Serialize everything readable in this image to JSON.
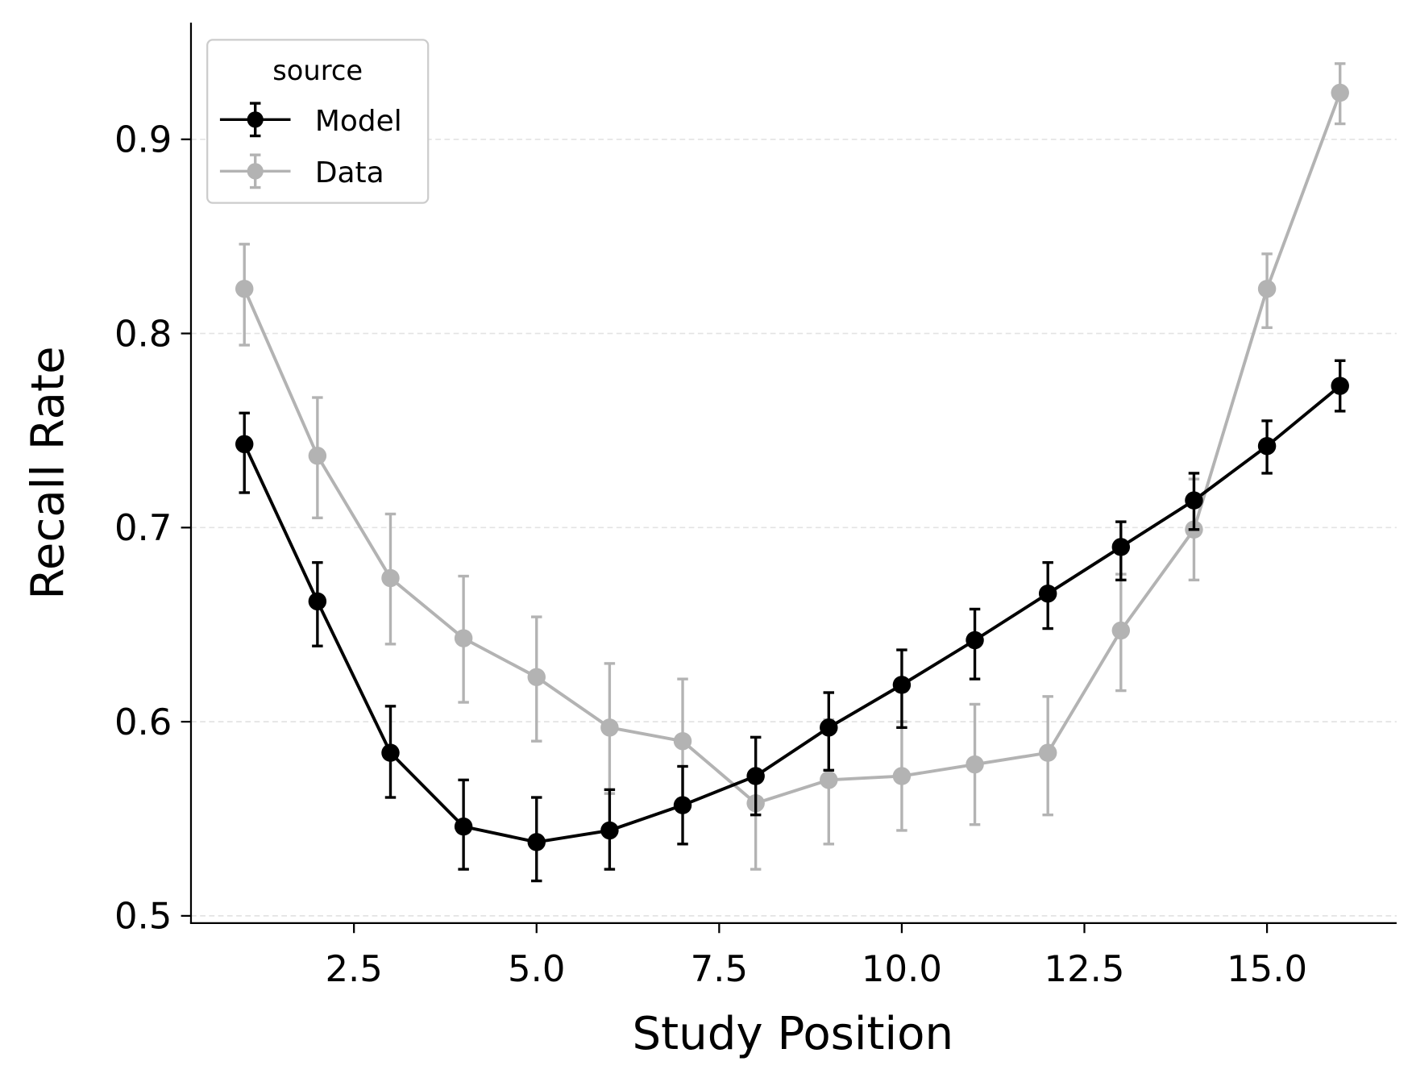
{
  "chart_data": {
    "type": "line",
    "xlabel": "Study Position",
    "ylabel": "Recall Rate",
    "xlim": [
      0.55,
      16.6
    ],
    "ylim": [
      0.497,
      0.96
    ],
    "xticks": [
      2.5,
      5.0,
      7.5,
      10.0,
      12.5,
      15.0
    ],
    "xtick_labels": [
      "2.5",
      "5.0",
      "7.5",
      "10.0",
      "12.5",
      "15.0"
    ],
    "yticks": [
      0.5,
      0.6,
      0.7,
      0.8,
      0.9
    ],
    "ytick_labels": [
      "0.5",
      "0.6",
      "0.7",
      "0.8",
      "0.9"
    ],
    "grid": "horizontal dashed",
    "legend": {
      "title": "source",
      "placement": "top-left"
    },
    "x": [
      1,
      2,
      3,
      4,
      5,
      6,
      7,
      8,
      9,
      10,
      11,
      12,
      13,
      14,
      15,
      16
    ],
    "series": [
      {
        "name": "Model",
        "color": "#000000",
        "values": [
          0.743,
          0.662,
          0.584,
          0.546,
          0.538,
          0.544,
          0.557,
          0.572,
          0.597,
          0.619,
          0.642,
          0.666,
          0.69,
          0.714,
          0.742,
          0.773
        ],
        "upper": [
          0.759,
          0.682,
          0.608,
          0.57,
          0.561,
          0.565,
          0.577,
          0.592,
          0.615,
          0.637,
          0.658,
          0.682,
          0.703,
          0.728,
          0.755,
          0.786
        ],
        "lower": [
          0.718,
          0.639,
          0.561,
          0.524,
          0.518,
          0.524,
          0.537,
          0.552,
          0.575,
          0.597,
          0.622,
          0.648,
          0.673,
          0.699,
          0.728,
          0.76
        ]
      },
      {
        "name": "Data",
        "color": "#b3b3b3",
        "values": [
          0.823,
          0.737,
          0.674,
          0.643,
          0.623,
          0.597,
          0.59,
          0.558,
          0.57,
          0.572,
          0.578,
          0.584,
          0.647,
          0.699,
          0.823,
          0.924
        ],
        "upper": [
          0.846,
          0.767,
          0.707,
          0.675,
          0.654,
          0.63,
          0.622,
          0.592,
          0.601,
          0.6,
          0.609,
          0.613,
          0.676,
          0.725,
          0.841,
          0.939
        ],
        "lower": [
          0.794,
          0.705,
          0.64,
          0.61,
          0.59,
          0.563,
          0.558,
          0.524,
          0.537,
          0.544,
          0.547,
          0.552,
          0.616,
          0.673,
          0.803,
          0.908
        ]
      }
    ]
  }
}
